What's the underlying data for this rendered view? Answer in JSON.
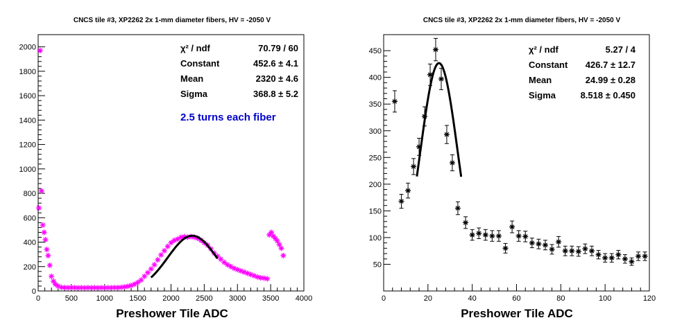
{
  "chart_data": [
    {
      "type": "scatter",
      "title": "CNCS tile #3, XP2262 2x 1-mm diameter fibers, HV = -2050 V",
      "xlabel": "Preshower Tile ADC",
      "ylabel": "",
      "xlim": [
        0,
        4000
      ],
      "ylim": [
        0,
        2100
      ],
      "xticks": [
        0,
        500,
        1000,
        1500,
        2000,
        2500,
        3000,
        3500,
        4000
      ],
      "yticks": [
        0,
        200,
        400,
        600,
        800,
        1000,
        1200,
        1400,
        1600,
        1800,
        2000
      ],
      "marker_color": "#ff00ff",
      "fit_color": "#000000",
      "annotation": "2.5 turns each fiber",
      "annotation_color": "#0000cc",
      "stats": [
        {
          "name": "χ² / ndf",
          "value": "70.79 / 60"
        },
        {
          "name": "Constant",
          "value": "452.6 ± 4.1"
        },
        {
          "name": "Mean",
          "value": "2320 ± 4.6"
        },
        {
          "name": "Sigma",
          "value": "368.8 ± 5.2"
        }
      ],
      "fit": {
        "constant": 452.6,
        "mean": 2320,
        "sigma": 368.8,
        "range": [
          1700,
          2700
        ]
      },
      "points": {
        "x": [
          10,
          30,
          50,
          70,
          90,
          110,
          130,
          150,
          175,
          200,
          230,
          260,
          300,
          350,
          400,
          450,
          500,
          550,
          600,
          650,
          700,
          750,
          800,
          850,
          900,
          950,
          1000,
          1050,
          1100,
          1150,
          1200,
          1250,
          1300,
          1350,
          1400,
          1450,
          1500,
          1550,
          1600,
          1650,
          1700,
          1750,
          1800,
          1850,
          1900,
          1950,
          2000,
          2050,
          2100,
          2150,
          2200,
          2250,
          2300,
          2350,
          2400,
          2450,
          2500,
          2550,
          2600,
          2650,
          2700,
          2750,
          2800,
          2850,
          2900,
          2950,
          3000,
          3050,
          3100,
          3150,
          3200,
          3250,
          3300,
          3350,
          3400,
          3450,
          3480,
          3510,
          3540,
          3570,
          3600,
          3630,
          3660,
          3690
        ],
        "y": [
          680,
          1970,
          820,
          540,
          480,
          420,
          340,
          290,
          210,
          120,
          80,
          55,
          40,
          30,
          28,
          27,
          28,
          27,
          26,
          27,
          26,
          27,
          26,
          27,
          26,
          27,
          26,
          27,
          27,
          28,
          28,
          30,
          33,
          38,
          45,
          55,
          70,
          90,
          120,
          150,
          180,
          215,
          255,
          295,
          330,
          365,
          395,
          415,
          425,
          440,
          445,
          440,
          445,
          440,
          432,
          415,
          395,
          375,
          345,
          310,
          285,
          260,
          235,
          215,
          200,
          185,
          175,
          165,
          155,
          145,
          135,
          125,
          115,
          108,
          105,
          100,
          460,
          480,
          450,
          430,
          410,
          380,
          350,
          290
        ]
      }
    },
    {
      "type": "scatter",
      "title": "CNCS tile #3, XP2262 2x 1-mm diameter fibers, HV = -2050 V",
      "xlabel": "Preshower Tile ADC",
      "ylabel": "",
      "xlim": [
        0,
        120
      ],
      "ylim": [
        0,
        480
      ],
      "xticks": [
        0,
        20,
        40,
        60,
        80,
        100,
        120
      ],
      "yticks": [
        50,
        100,
        150,
        200,
        250,
        300,
        350,
        400,
        450
      ],
      "marker_color": "#000000",
      "fit_color": "#000000",
      "stats": [
        {
          "name": "χ² / ndf",
          "value": "5.27 / 4"
        },
        {
          "name": "Constant",
          "value": "426.7 ± 12.7"
        },
        {
          "name": "Mean",
          "value": "24.99 ± 0.28"
        },
        {
          "name": "Sigma",
          "value": "8.518 ± 0.450"
        }
      ],
      "fit": {
        "constant": 426.7,
        "mean": 24.99,
        "sigma": 8.518,
        "range": [
          15,
          35
        ]
      },
      "points": {
        "x": [
          5,
          8,
          11,
          13.5,
          16,
          18.5,
          21,
          23.5,
          26,
          28.5,
          31,
          33.5,
          37,
          40,
          43,
          46,
          49,
          52,
          55,
          58,
          61,
          64,
          67,
          70,
          73,
          76,
          79,
          82,
          85,
          88,
          91,
          94,
          97,
          100,
          103,
          106,
          109,
          112,
          115,
          118
        ],
        "y": [
          355,
          168,
          188,
          233,
          270,
          327,
          405,
          452,
          397,
          293,
          240,
          155,
          128,
          105,
          108,
          105,
          103,
          103,
          80,
          120,
          103,
          102,
          90,
          88,
          86,
          78,
          92,
          75,
          75,
          74,
          79,
          75,
          68,
          62,
          62,
          68,
          60,
          55,
          65,
          65
        ],
        "yerr": [
          20,
          13,
          14,
          15,
          16,
          18,
          20,
          21,
          20,
          17,
          15,
          12,
          11,
          10,
          10,
          10,
          10,
          10,
          9,
          11,
          10,
          10,
          9,
          9,
          9,
          9,
          10,
          9,
          9,
          9,
          9,
          9,
          8,
          8,
          8,
          8,
          8,
          7,
          8,
          8
        ],
        "xerr": 1.2
      }
    }
  ]
}
